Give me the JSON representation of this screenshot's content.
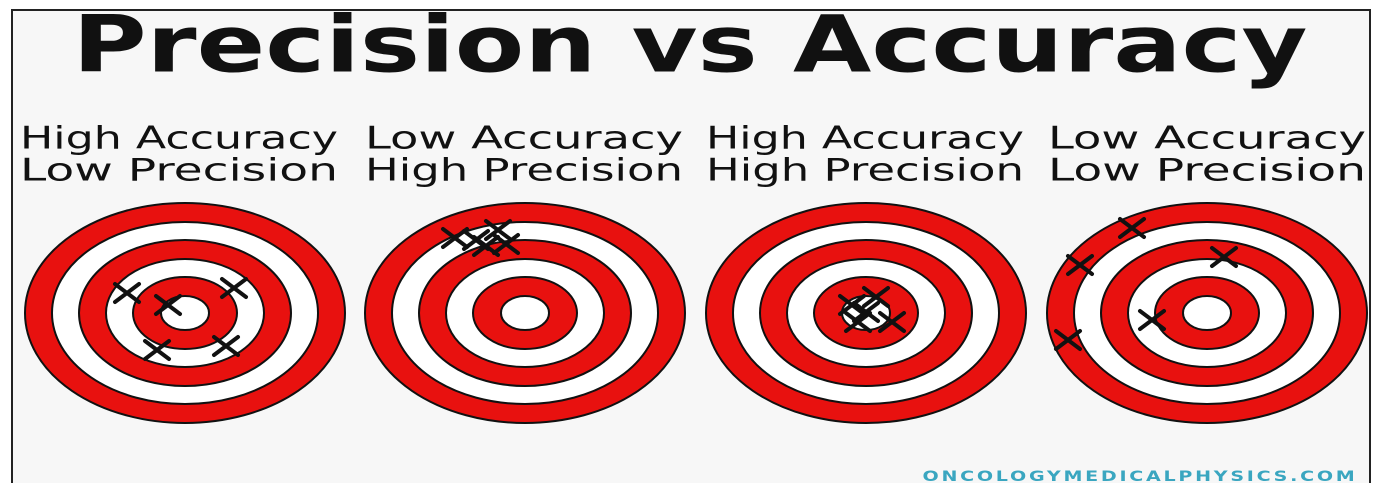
{
  "title": "Precision vs Accuracy",
  "panels": [
    {
      "lines": [
        "High Accuracy",
        "Low Precision"
      ]
    },
    {
      "lines": [
        "Low Accuracy",
        "High Precision"
      ]
    },
    {
      "lines": [
        "High Accuracy",
        "High Precision"
      ]
    },
    {
      "lines": [
        "Low Accuracy",
        "Low Precision"
      ]
    }
  ],
  "credit": "ONCOLOGYMEDICALPHYSICS.COM"
}
